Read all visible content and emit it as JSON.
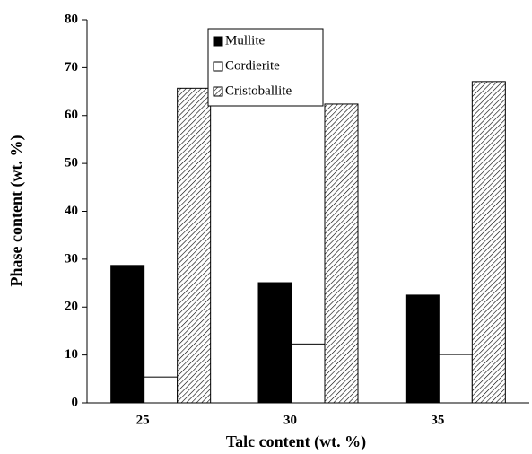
{
  "chart_data": {
    "type": "bar",
    "x_label": "Talc content (wt. %)",
    "y_label": "Phase content (wt. %)",
    "categories": [
      "25",
      "30",
      "35"
    ],
    "series": [
      {
        "name": "Mullite",
        "color": "#000000",
        "values": [
          28.7,
          25.1,
          22.5
        ]
      },
      {
        "name": "Cordierite",
        "color": "#ffffff",
        "values": [
          5.4,
          12.3,
          10.1
        ]
      },
      {
        "name": "Cristoballite",
        "color": "#ffffff",
        "pattern": "hatch",
        "values": [
          65.7,
          62.4,
          67.1
        ]
      }
    ],
    "ylim": [
      0,
      80
    ],
    "yticks": [
      0,
      10,
      20,
      30,
      40,
      50,
      60,
      70,
      80
    ]
  }
}
